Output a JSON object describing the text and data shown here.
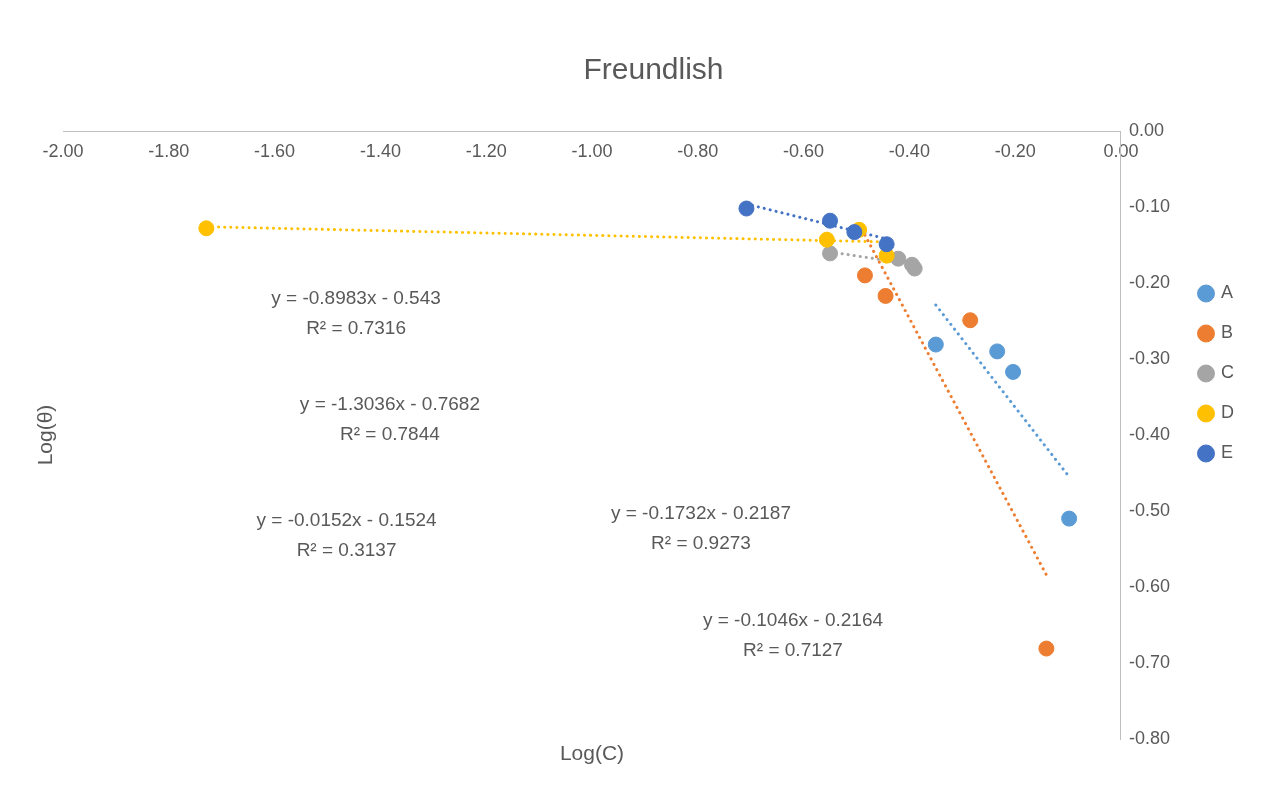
{
  "chart_data": {
    "type": "scatter",
    "title": "Freundlish",
    "xlabel": "Log(C)",
    "ylabel": "Log(θ)",
    "xlim": [
      -2,
      0
    ],
    "xticks": [
      {
        "value": -2,
        "label": "-2.00"
      },
      {
        "value": -1.8,
        "label": "-1.80"
      },
      {
        "value": -1.6,
        "label": "-1.60"
      },
      {
        "value": -1.4,
        "label": "-1.40"
      },
      {
        "value": -1.2,
        "label": "-1.20"
      },
      {
        "value": -1,
        "label": "-1.00"
      },
      {
        "value": -0.8,
        "label": "-0.80"
      },
      {
        "value": -0.6,
        "label": "-0.60"
      },
      {
        "value": -0.4,
        "label": "-0.40"
      },
      {
        "value": -0.2,
        "label": "-0.20"
      },
      {
        "value": 0,
        "label": "0.00"
      }
    ],
    "ylim": [
      -0.8,
      0
    ],
    "yticks": [
      {
        "value": 0,
        "label": "0.00"
      },
      {
        "value": -0.1,
        "label": "-0.10"
      },
      {
        "value": -0.2,
        "label": "-0.20"
      },
      {
        "value": -0.3,
        "label": "-0.30"
      },
      {
        "value": -0.4,
        "label": "-0.40"
      },
      {
        "value": -0.5,
        "label": "-0.50"
      },
      {
        "value": -0.6,
        "label": "-0.60"
      },
      {
        "value": -0.7,
        "label": "-0.70"
      },
      {
        "value": -0.8,
        "label": "-0.80"
      }
    ],
    "grid": false,
    "legend": "right",
    "marker": "circle",
    "series": [
      {
        "name": "A",
        "color": "#5b9bd5",
        "x": [
          -0.35,
          -0.234,
          -0.204,
          -0.098
        ],
        "values": [
          -0.281,
          -0.29,
          -0.317,
          -0.51
        ]
      },
      {
        "name": "B",
        "color": "#ed7d31",
        "x": [
          -0.484,
          -0.445,
          -0.285,
          -0.141
        ],
        "values": [
          -0.19,
          -0.217,
          -0.249,
          -0.681
        ]
      },
      {
        "name": "C",
        "color": "#a5a5a5",
        "x": [
          -0.55,
          -0.421,
          -0.395,
          -0.39
        ],
        "values": [
          -0.161,
          -0.168,
          -0.176,
          -0.181
        ]
      },
      {
        "name": "D",
        "color": "#ffc000",
        "x": [
          -1.729,
          -0.556,
          -0.495,
          -0.443
        ],
        "values": [
          -0.128,
          -0.143,
          -0.13,
          -0.164
        ]
      },
      {
        "name": "E",
        "color": "#4472c4",
        "x": [
          -0.708,
          -0.55,
          -0.504,
          -0.443
        ],
        "values": [
          -0.102,
          -0.118,
          -0.133,
          -0.149
        ]
      },
      {
        "type": "line",
        "color": "#5b9bd5",
        "line_style": "dotted",
        "marker": "none",
        "x": [
          -0.35,
          -0.098
        ],
        "values": [
          -0.229,
          -0.455
        ]
      },
      {
        "type": "line",
        "color": "#ed7d31",
        "line_style": "dotted",
        "marker": "none",
        "x": [
          -0.484,
          -0.141
        ],
        "values": [
          -0.137,
          -0.584
        ]
      },
      {
        "type": "line",
        "color": "#a5a5a5",
        "line_style": "dotted",
        "marker": "none",
        "x": [
          -0.55,
          -0.39
        ],
        "values": [
          -0.159,
          -0.176
        ]
      },
      {
        "type": "line",
        "color": "#ffc000",
        "line_style": "dotted",
        "marker": "none",
        "x": [
          -1.729,
          -0.443
        ],
        "values": [
          -0.126,
          -0.146
        ]
      },
      {
        "type": "line",
        "color": "#4472c4",
        "line_style": "dotted",
        "marker": "none",
        "x": [
          -0.708,
          -0.443
        ],
        "values": [
          -0.096,
          -0.142
        ]
      }
    ],
    "annotations": [
      "y = -0.8983x - 0.543\nR² = 0.7316",
      "y = -1.3036x - 0.7682\nR² = 0.7844",
      "y = -0.0152x - 0.1524\nR² = 0.3137",
      "y = -0.1732x - 0.2187\nR² = 0.9273",
      "y = -0.1046x - 0.2164\nR² = 0.7127"
    ]
  }
}
